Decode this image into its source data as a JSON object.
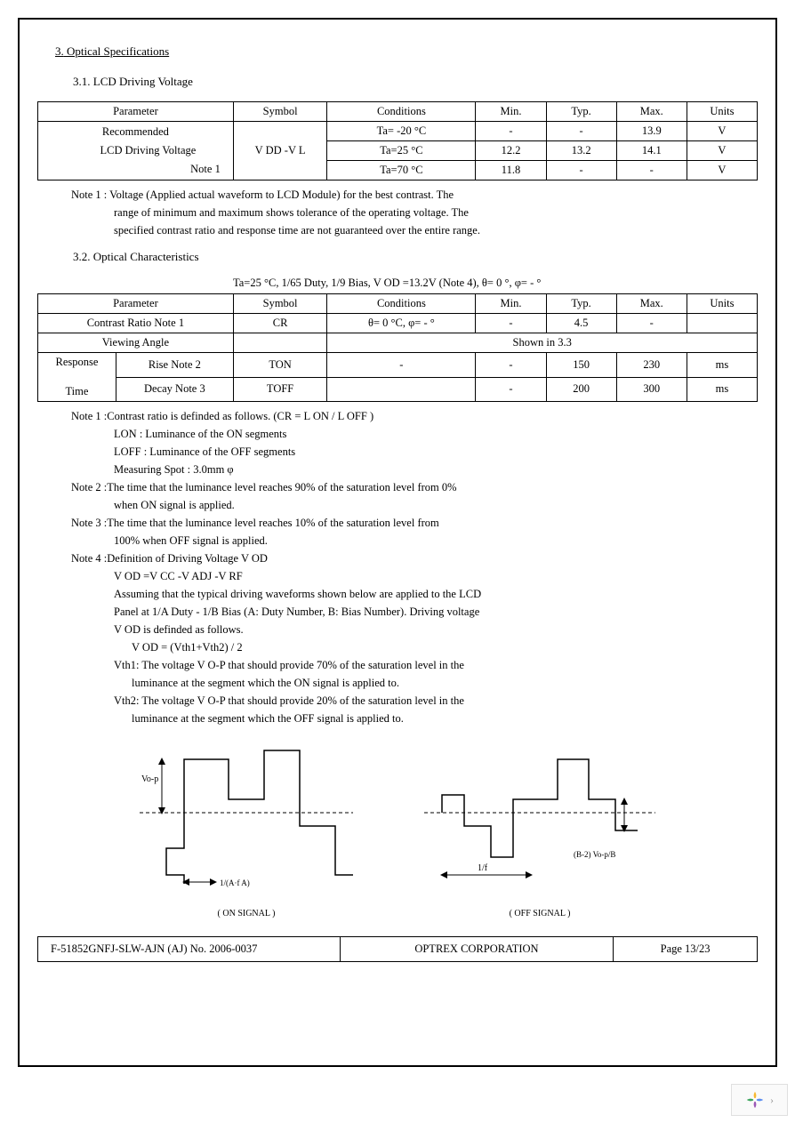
{
  "section": {
    "num": "3.",
    "title": "Optical Specifications"
  },
  "s31": {
    "title": "3.1. LCD Driving Voltage",
    "headers": [
      "Parameter",
      "Symbol",
      "Conditions",
      "Min.",
      "Typ.",
      "Max.",
      "Units"
    ],
    "paramLine1": "Recommended",
    "paramLine2": "LCD Driving Voltage",
    "paramLine3": "Note 1",
    "symbol": "V DD -V L",
    "rows": [
      {
        "cond": "Ta= -20  °C",
        "min": "-",
        "typ": "-",
        "max": "13.9",
        "unit": "V"
      },
      {
        "cond": "Ta=25  °C",
        "min": "12.2",
        "typ": "13.2",
        "max": "14.1",
        "unit": "V"
      },
      {
        "cond": "Ta=70  °C",
        "min": "11.8",
        "typ": "-",
        "max": "-",
        "unit": "V"
      }
    ],
    "note": [
      "Note 1 : Voltage (Applied actual waveform to LCD Module) for the best contrast. The",
      "range of minimum and maximum shows tolerance of the operating voltage. The",
      "specified contrast ratio and response time are not guaranteed over the entire range."
    ]
  },
  "s32": {
    "title": "3.2. Optical Characteristics",
    "condLine": "Ta=25  °C, 1/65 Duty, 1/9 Bias, V        OD =13.2V (Note 4),        θ= 0 °, φ= - °",
    "headers": [
      "Parameter",
      "Symbol",
      "Conditions",
      "Min.",
      "Typ.",
      "Max.",
      "Units"
    ],
    "r1": {
      "param": "Contrast Ratio          Note 1",
      "sym": "CR",
      "cond": "θ= 0 °C,  φ= - °",
      "min": "-",
      "typ": "4.5",
      "max": "-",
      "unit": ""
    },
    "r2": {
      "param": "Viewing Angle",
      "span": "Shown in 3.3"
    },
    "r3": {
      "p1": "Response",
      "p2": "Rise     Note 2",
      "sym": "TON",
      "cond": "-",
      "min": "-",
      "typ": "150",
      "max": "230",
      "unit": "ms"
    },
    "r4": {
      "p1": "Time",
      "p2": "Decay   Note 3",
      "sym": "TOFF",
      "cond": "",
      "min": "-",
      "typ": "200",
      "max": "300",
      "unit": "ms"
    },
    "notes": [
      "Note 1 :Contrast ratio is definded as follows. (CR = L           ON  / L OFF  )",
      "LON    : Luminance of the ON segments",
      "LOFF  : Luminance of the OFF segments",
      "Measuring Spot : 3.0mm          φ",
      "Note 2 :The time that the luminance level reaches 90% of the saturation level from 0%",
      "when ON signal is applied.",
      "Note 3 :The time that the luminance level reaches 10% of the saturation level from",
      "100% when OFF signal is applied.",
      "Note 4 :Definition of Driving Voltage V              OD",
      "V OD  =V CC  -V ADJ  -V RF",
      "Assuming that the typical driving waveforms shown below are applied to the LCD",
      "Panel at 1/A Duty - 1/B Bias (A: Duty Number, B: Bias Number). Driving voltage",
      "V OD  is definded as follows.",
      "V OD  = (Vth1+Vth2) / 2",
      "Vth1:  The voltage V        O-P  that should provide 70% of the saturation level in the",
      "luminance at the segment which the ON signal is applied to.",
      "Vth2:  The voltage V        O-P  that should provide 20% of the saturation level in the",
      "luminance at the segment which the OFF signal is applied to."
    ]
  },
  "diagram": {
    "labelOn": "( ON SIGNAL )",
    "labelOff": "( OFF SIGNAL )",
    "vop": "Vo-p",
    "oneAf": "1/(A·f   A)",
    "oneF": "1/f",
    "bVop": "(B-2)     Vo-p/B"
  },
  "footer": {
    "left": "F-51852GNFJ-SLW-AJN (AJ) No. 2006-0037",
    "mid": "OPTREX CORPORATION",
    "right": "Page 13/23"
  },
  "style": {
    "border": "#000000",
    "bg": "#ffffff"
  }
}
